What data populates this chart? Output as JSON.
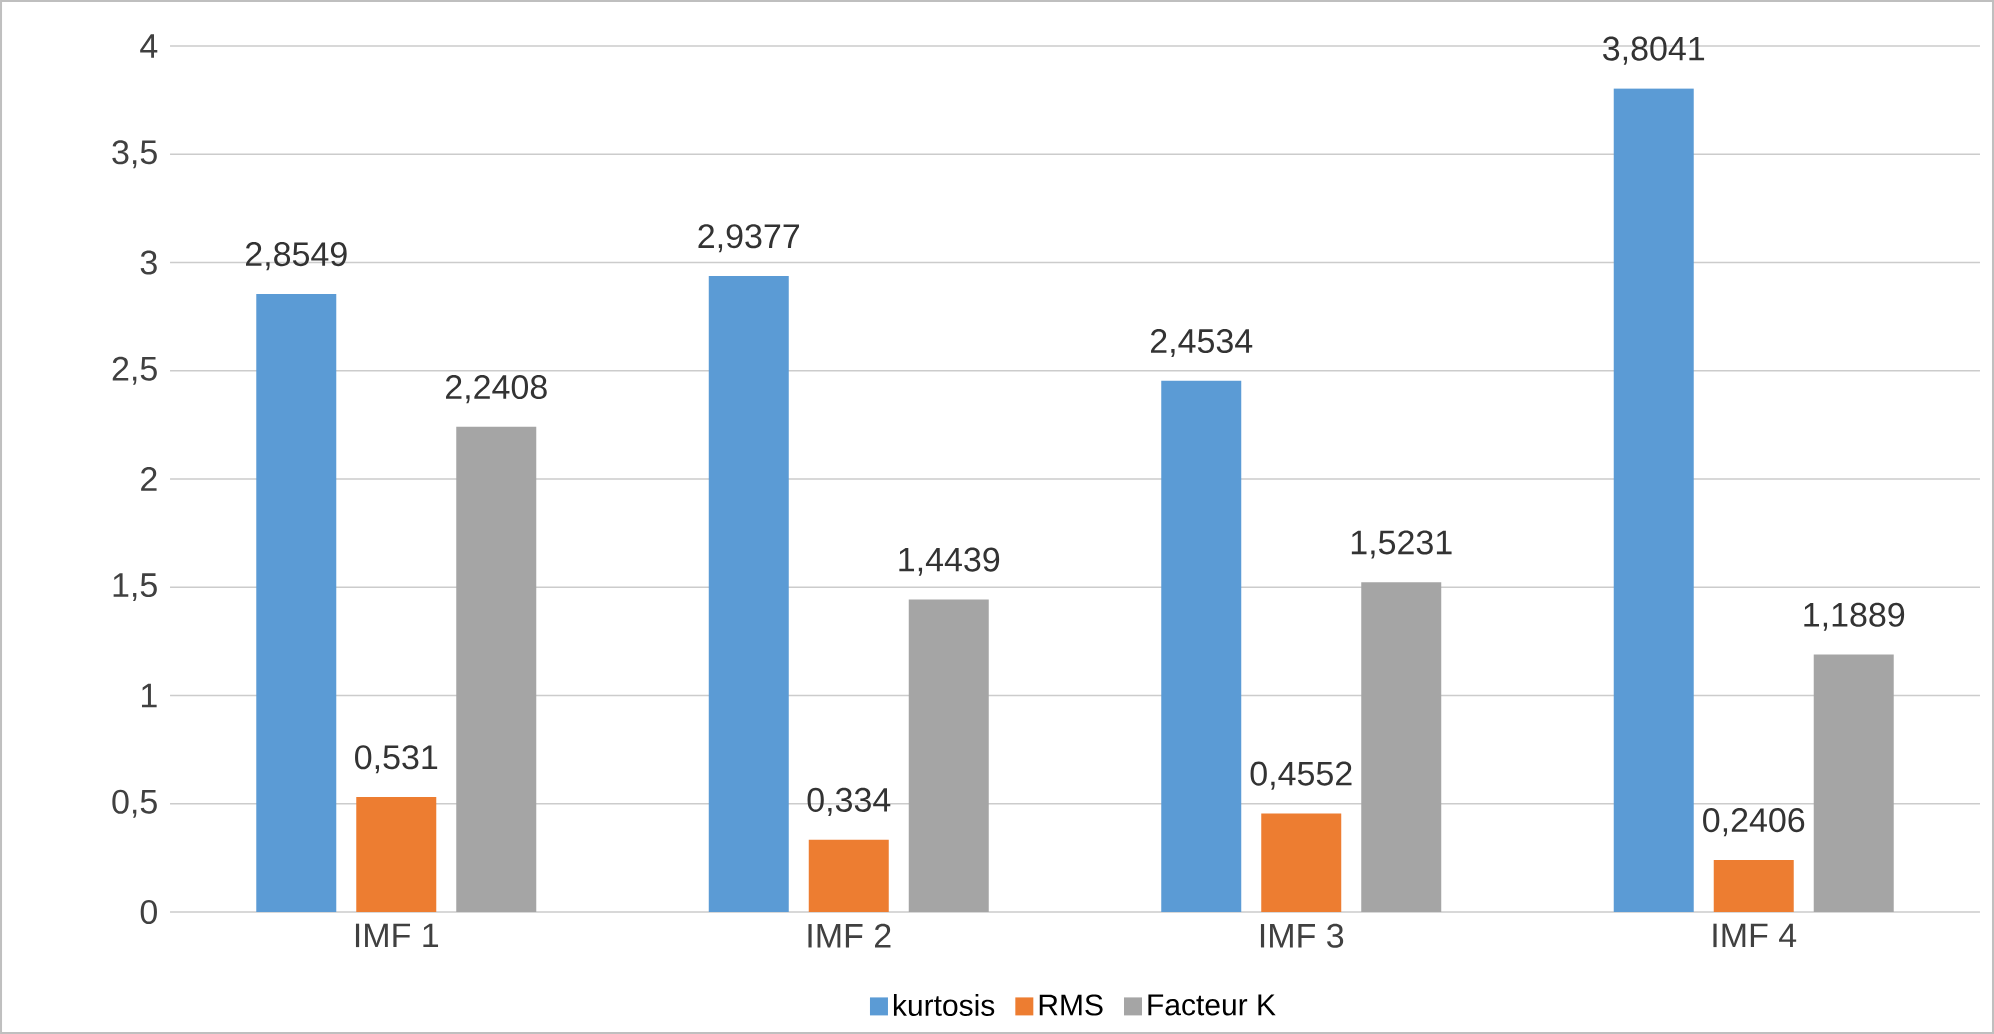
{
  "chart_data": {
    "type": "bar",
    "categories": [
      "IMF 1",
      "IMF 2",
      "IMF 3",
      "IMF 4"
    ],
    "series": [
      {
        "name": "kurtosis",
        "color": "#5b9bd5",
        "values": [
          2.8549,
          2.9377,
          2.4534,
          3.8041
        ],
        "value_labels": [
          "2,8549",
          "2,9377",
          "2,4534",
          "3,8041"
        ]
      },
      {
        "name": "RMS",
        "color": "#ed7d31",
        "values": [
          0.531,
          0.334,
          0.4552,
          0.2406
        ],
        "value_labels": [
          "0,531",
          "0,334",
          "0,4552",
          "0,2406"
        ]
      },
      {
        "name": "Facteur K",
        "color": "#a5a5a5",
        "values": [
          2.2408,
          1.4439,
          1.5231,
          1.1889
        ],
        "value_labels": [
          "2,2408",
          "1,4439",
          "1,5231",
          "1,1889"
        ]
      }
    ],
    "ylim": [
      0,
      4
    ],
    "yticks": [
      0,
      {
        "value": 0.5,
        "label": "0,5"
      },
      1,
      {
        "value": 1.5,
        "label": "1,5"
      },
      2,
      {
        "value": 2.5,
        "label": "2,5"
      },
      3,
      {
        "value": 3.5,
        "label": "3,5"
      },
      4
    ],
    "grid": "y",
    "legend": "bottom"
  }
}
